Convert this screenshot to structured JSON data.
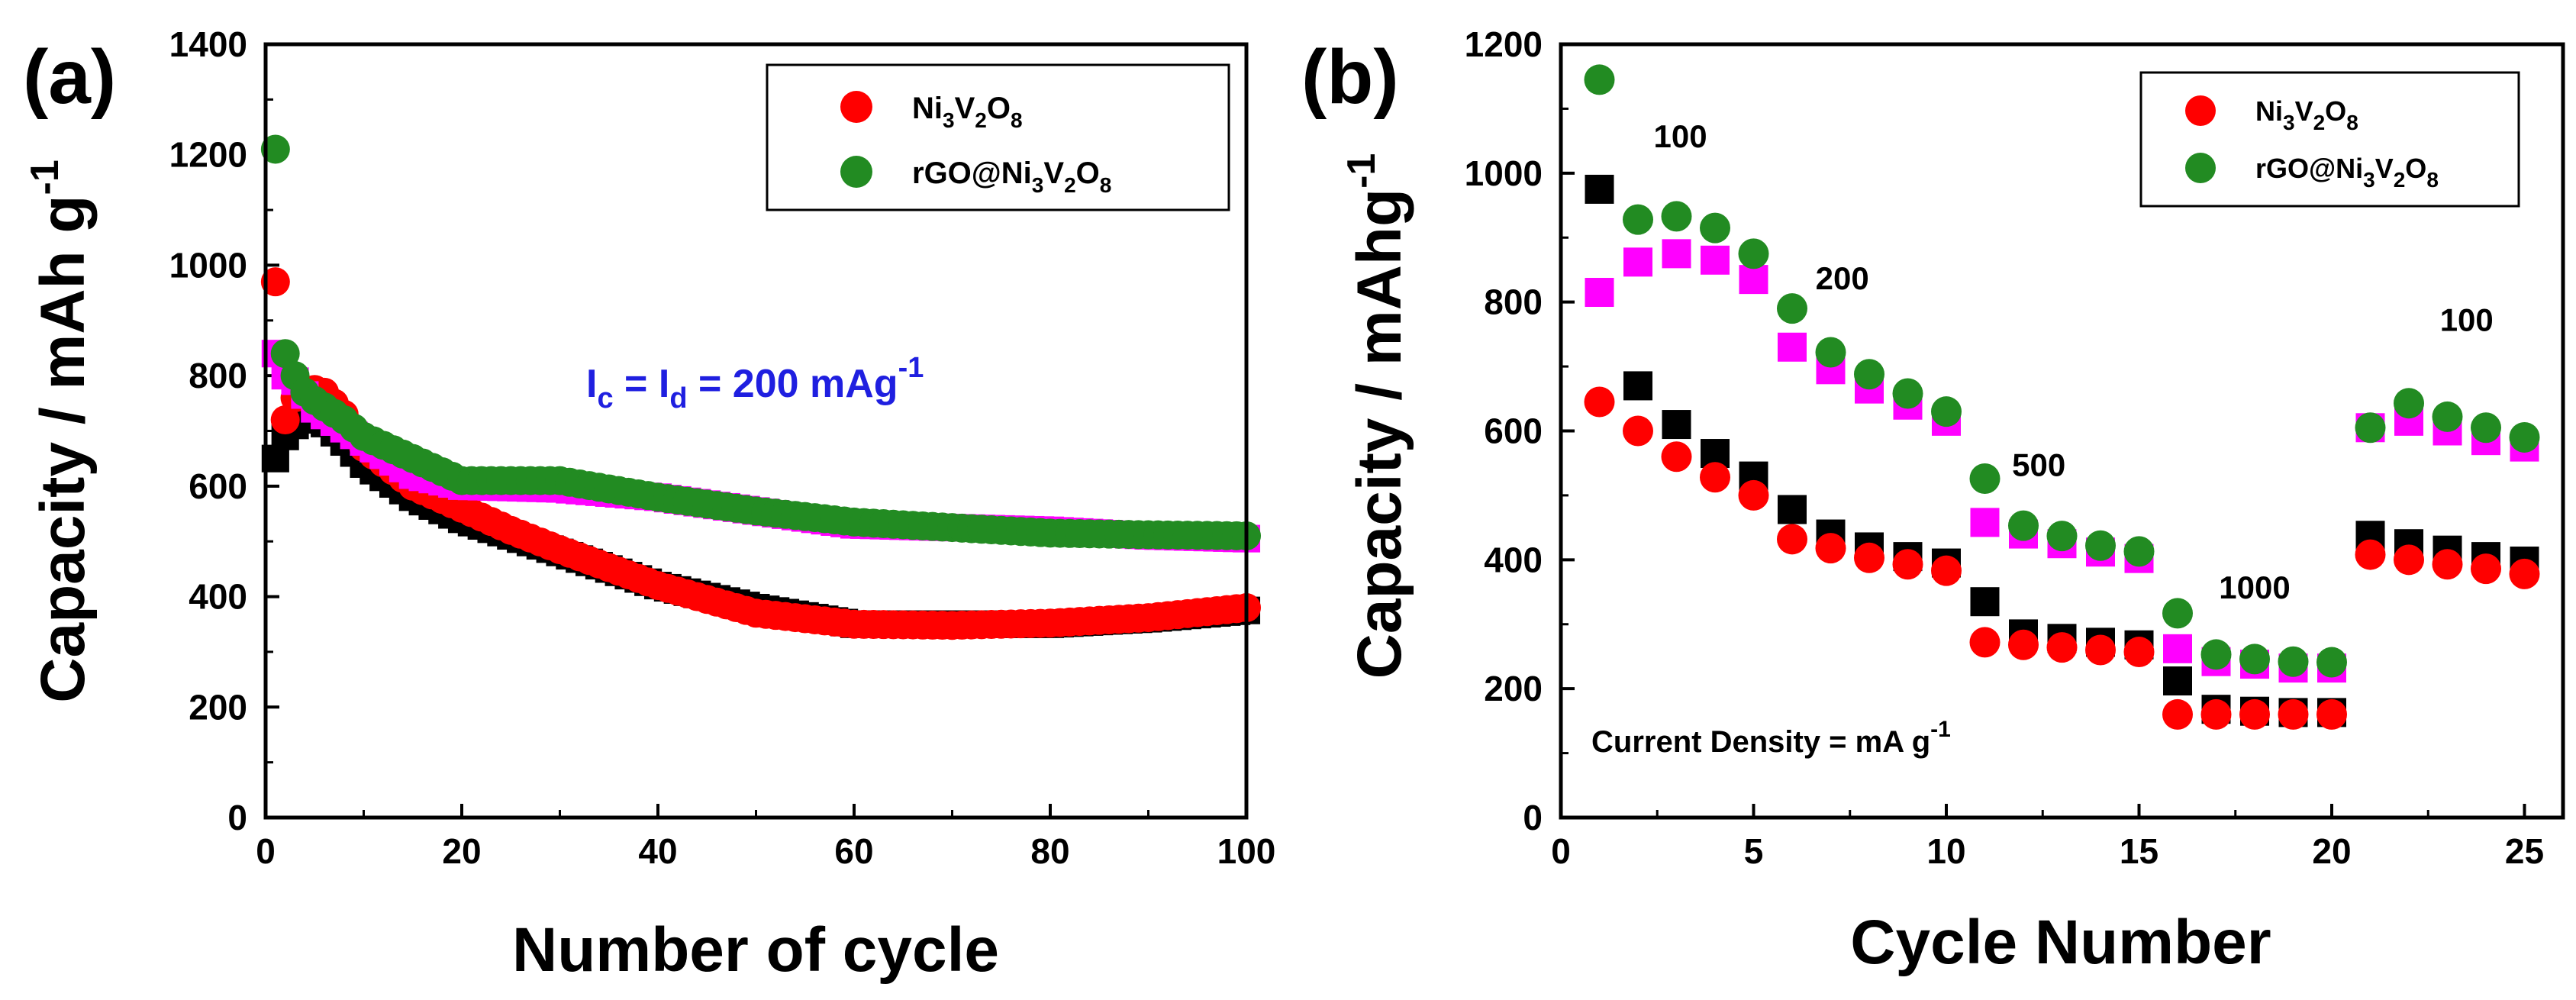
{
  "chart_data": [
    {
      "type": "scatter",
      "panel_label": "(a)",
      "title": "",
      "xlabel": "Number of cycle",
      "ylabel": "Capacity / mAh g",
      "ylabel_sup": "-1",
      "xlim": [
        0,
        100
      ],
      "ylim": [
        0,
        1400
      ],
      "xticks": [
        0,
        20,
        40,
        60,
        80,
        100
      ],
      "yticks": [
        0,
        200,
        400,
        600,
        800,
        1000,
        1200,
        1400
      ],
      "xtick_labels": [
        "0",
        "20",
        "40",
        "60",
        "80",
        "100"
      ],
      "ytick_labels": [
        "0",
        "200",
        "400",
        "600",
        "800",
        "1000",
        "1200",
        "1400"
      ],
      "legend": {
        "placement": "top-right",
        "entries": [
          {
            "label": "Ni3V2O8",
            "base": "Ni",
            "parts": [
              [
                "Ni",
                ""
              ],
              [
                "3",
                "sub"
              ],
              [
                "V",
                ""
              ],
              [
                "2",
                "sub"
              ],
              [
                "O",
                ""
              ],
              [
                "8",
                "sub"
              ]
            ],
            "color": "#ff0000",
            "marker": "circle"
          },
          {
            "label": "rGO@Ni3V2O8",
            "base": "rGO@Ni",
            "parts": [
              [
                "rGO@Ni",
                ""
              ],
              [
                "3",
                "sub"
              ],
              [
                "V",
                ""
              ],
              [
                "2",
                "sub"
              ],
              [
                "O",
                ""
              ],
              [
                "8",
                "sub"
              ]
            ],
            "color": "#228b22",
            "marker": "circle"
          }
        ]
      },
      "condition_text": {
        "ic": "I",
        "ic_sub": "c",
        "eq1": " = I",
        "id_sub": "d",
        "eq2": " = 200 mAg",
        "sup": "-1"
      },
      "series": [
        {
          "name": "Ni3V2O8 (charge)",
          "marker": "square",
          "color": "#000000",
          "x": [
            1,
            2,
            3,
            4,
            5,
            8,
            10,
            15,
            20,
            30,
            40,
            50,
            60,
            70,
            80,
            90,
            100
          ],
          "y": [
            650,
            690,
            710,
            720,
            730,
            680,
            640,
            580,
            540,
            480,
            420,
            380,
            350,
            350,
            350,
            360,
            375
          ]
        },
        {
          "name": "Ni3V2O8 (discharge)",
          "marker": "circle",
          "color": "#ff0000",
          "x": [
            1,
            2,
            3,
            4,
            5,
            6,
            8,
            10,
            15,
            20,
            25,
            30,
            40,
            50,
            60,
            70,
            80,
            90,
            100
          ],
          "y": [
            970,
            720,
            760,
            775,
            775,
            770,
            730,
            670,
            600,
            560,
            520,
            485,
            420,
            370,
            350,
            348,
            352,
            362,
            380
          ]
        },
        {
          "name": "rGO@Ni3V2O8 (charge)",
          "marker": "square",
          "color": "#ff00ff",
          "x": [
            1,
            2,
            3,
            5,
            10,
            15,
            20,
            30,
            40,
            50,
            60,
            70,
            80,
            90,
            100
          ],
          "y": [
            840,
            800,
            790,
            740,
            680,
            620,
            600,
            595,
            580,
            555,
            530,
            525,
            520,
            510,
            505
          ]
        },
        {
          "name": "rGO@Ni3V2O8 (discharge)",
          "marker": "circle",
          "color": "#228b22",
          "x": [
            1,
            2,
            3,
            4,
            5,
            8,
            10,
            15,
            20,
            25,
            30,
            35,
            40,
            50,
            60,
            70,
            80,
            90,
            100
          ],
          "y": [
            1210,
            840,
            800,
            770,
            755,
            720,
            690,
            650,
            610,
            610,
            610,
            595,
            580,
            555,
            535,
            525,
            515,
            512,
            510
          ]
        }
      ]
    },
    {
      "type": "scatter",
      "panel_label": "(b)",
      "title": "",
      "xlabel": "Cycle Number",
      "ylabel": "Capacity / mAhg",
      "ylabel_sup": "-1",
      "xlim": [
        0,
        26
      ],
      "ylim": [
        0,
        1200
      ],
      "xticks": [
        0,
        5,
        10,
        15,
        20,
        25
      ],
      "yticks": [
        0,
        200,
        400,
        600,
        800,
        1000,
        1200
      ],
      "xtick_labels": [
        "0",
        "5",
        "10",
        "15",
        "20",
        "25"
      ],
      "ytick_labels": [
        "0",
        "200",
        "400",
        "600",
        "800",
        "1000",
        "1200"
      ],
      "legend": {
        "placement": "top-right",
        "entries": [
          {
            "label": "Ni3V2O8",
            "parts": [
              [
                "Ni",
                ""
              ],
              [
                "3",
                "sub"
              ],
              [
                "V",
                ""
              ],
              [
                "2",
                "sub"
              ],
              [
                "O",
                ""
              ],
              [
                "8",
                "sub"
              ]
            ],
            "color": "#ff0000",
            "marker": "circle"
          },
          {
            "label": "rGO@Ni3V2O8",
            "parts": [
              [
                "rGO@Ni",
                ""
              ],
              [
                "3",
                "sub"
              ],
              [
                "V",
                ""
              ],
              [
                "2",
                "sub"
              ],
              [
                "O",
                ""
              ],
              [
                "8",
                "sub"
              ]
            ],
            "color": "#228b22",
            "marker": "circle"
          }
        ]
      },
      "annotations": [
        {
          "text": "100",
          "x": 3.1,
          "y": 1040
        },
        {
          "text": "200",
          "x": 7.3,
          "y": 820
        },
        {
          "text": "500",
          "x": 12.4,
          "y": 530
        },
        {
          "text": "1000",
          "x": 18.0,
          "y": 340
        },
        {
          "text": "100",
          "x": 23.5,
          "y": 755
        }
      ],
      "current_density": {
        "text": "Current Density = mA g",
        "sup": "-1"
      },
      "series": [
        {
          "name": "Ni3V2O8 (charge)",
          "marker": "square",
          "color": "#000000",
          "x": [
            1,
            2,
            3,
            4,
            5,
            6,
            7,
            8,
            9,
            10,
            11,
            12,
            13,
            14,
            15,
            16,
            17,
            18,
            19,
            20,
            21,
            22,
            23,
            24,
            25
          ],
          "y": [
            975,
            670,
            610,
            565,
            530,
            478,
            440,
            420,
            405,
            395,
            335,
            285,
            278,
            272,
            268,
            212,
            168,
            165,
            163,
            163,
            438,
            425,
            415,
            405,
            398
          ]
        },
        {
          "name": "Ni3V2O8 (discharge)",
          "marker": "circle",
          "color": "#ff0000",
          "x": [
            1,
            2,
            3,
            4,
            5,
            6,
            7,
            8,
            9,
            10,
            11,
            12,
            13,
            14,
            15,
            16,
            17,
            18,
            19,
            20,
            21,
            22,
            23,
            24,
            25
          ],
          "y": [
            645,
            600,
            560,
            528,
            500,
            432,
            418,
            403,
            393,
            383,
            272,
            268,
            264,
            260,
            257,
            160,
            160,
            160,
            160,
            160,
            408,
            400,
            393,
            386,
            378
          ]
        },
        {
          "name": "rGO@Ni3V2O8 (charge)",
          "marker": "square",
          "color": "#ff00ff",
          "x": [
            1,
            2,
            3,
            4,
            5,
            6,
            7,
            8,
            9,
            10,
            11,
            12,
            13,
            14,
            15,
            16,
            17,
            18,
            19,
            20,
            21,
            22,
            23,
            24,
            25
          ],
          "y": [
            815,
            862,
            875,
            865,
            835,
            730,
            695,
            665,
            640,
            615,
            458,
            440,
            425,
            412,
            402,
            262,
            242,
            238,
            232,
            232,
            605,
            615,
            600,
            585,
            575
          ]
        },
        {
          "name": "rGO@Ni3V2O8 (discharge)",
          "marker": "circle",
          "color": "#228b22",
          "x": [
            1,
            2,
            3,
            4,
            5,
            6,
            7,
            8,
            9,
            10,
            11,
            12,
            13,
            14,
            15,
            16,
            17,
            18,
            19,
            20,
            21,
            22,
            23,
            24,
            25
          ],
          "y": [
            1145,
            928,
            933,
            915,
            875,
            790,
            722,
            688,
            658,
            630,
            526,
            453,
            437,
            422,
            413,
            317,
            253,
            246,
            242,
            241,
            605,
            643,
            622,
            605,
            590
          ]
        }
      ]
    }
  ]
}
